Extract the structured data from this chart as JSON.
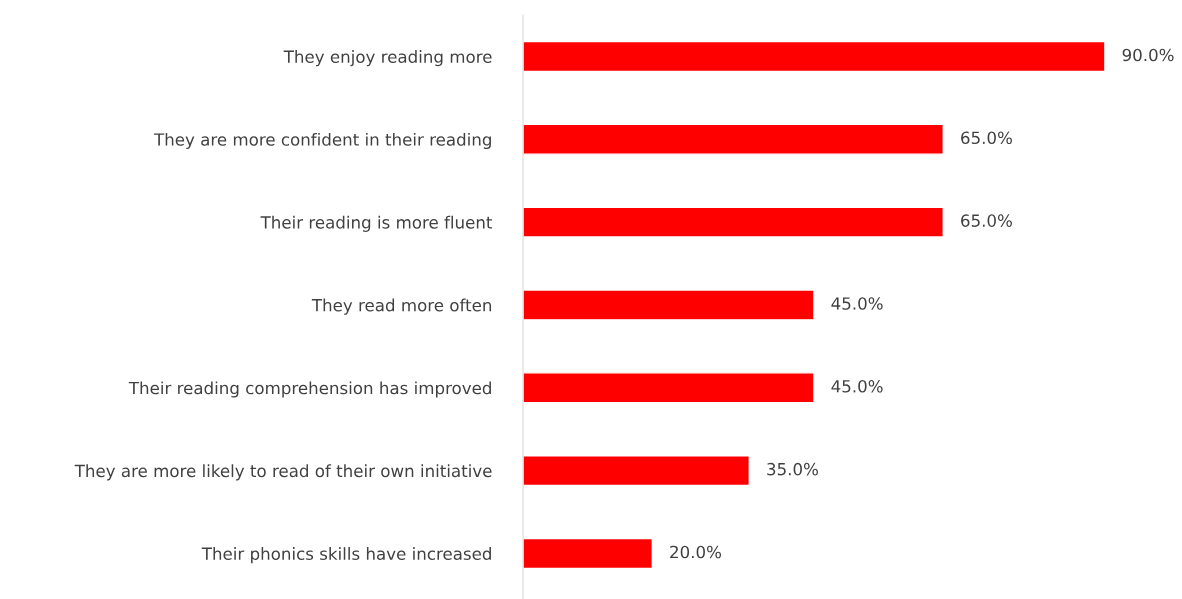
{
  "chart_data": {
    "type": "bar",
    "orientation": "horizontal",
    "categories": [
      "They enjoy reading more",
      "They are more confident in their reading",
      "Their reading is more fluent",
      "They read more often",
      "Their reading comprehension has improved",
      "They are more likely to read of their own initiative",
      "Their phonics skills have increased"
    ],
    "values": [
      90.0,
      65.0,
      65.0,
      45.0,
      45.0,
      35.0,
      20.0
    ],
    "value_labels": [
      "90.0%",
      "65.0%",
      "65.0%",
      "45.0%",
      "45.0%",
      "35.0%",
      "20.0%"
    ],
    "color": "#ff0000",
    "tick_labels": "y",
    "grid": false,
    "legend": false
  }
}
